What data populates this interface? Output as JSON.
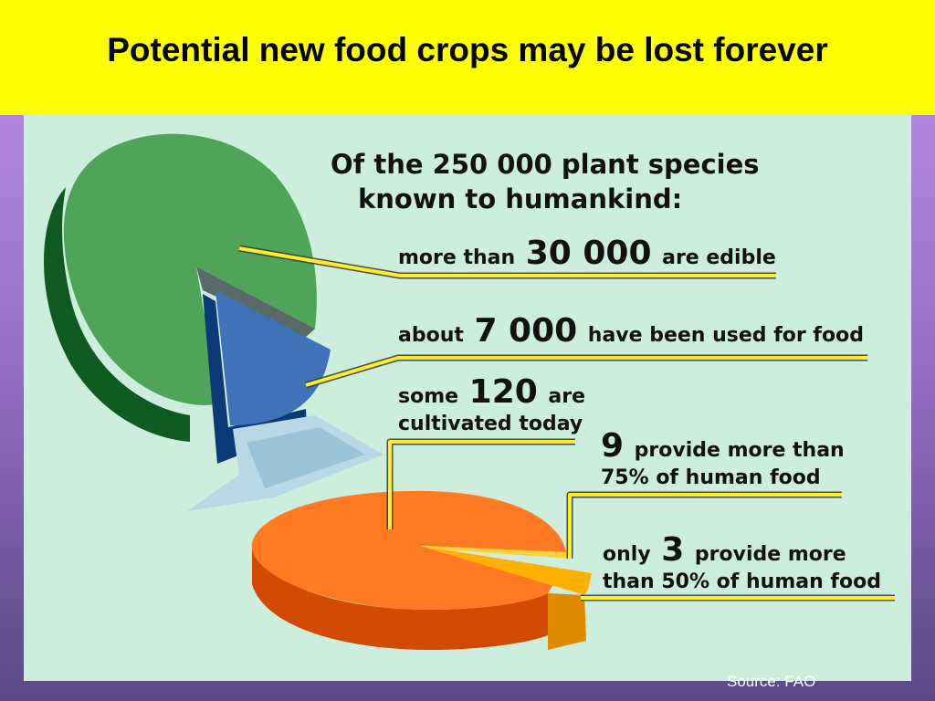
{
  "title": "Potential new food crops may be lost forever",
  "source": "Source: FAO",
  "chart_data": {
    "type": "pie",
    "heading_line1": "Of the 250 000 plant species",
    "heading_line2": "known to humankind:",
    "pies": [
      {
        "total": 250000,
        "slices": [
          {
            "label": "edible",
            "value": 30000
          },
          {
            "label": "used for food",
            "value": 7000
          }
        ]
      },
      {
        "total": 120,
        "slices": [
          {
            "label": "provide more than 75% of human food",
            "value": 9
          },
          {
            "label": "provide more than 50% of human food",
            "value": 3
          }
        ]
      }
    ],
    "labels": [
      {
        "pre": "more than",
        "num": "30 000",
        "post": "are edible"
      },
      {
        "pre": "about",
        "num": "7 000",
        "post": "have been used for food"
      },
      {
        "pre": "some",
        "num": "120",
        "post": "are",
        "line2": "cultivated today"
      },
      {
        "pre": "",
        "num": "9",
        "post": "provide more than",
        "line2": "75% of human food"
      },
      {
        "pre": "only",
        "num": "3",
        "post": "provide more",
        "line2": "than 50% of human food"
      }
    ],
    "colors": {
      "edible_pie": "#4fa45a",
      "edible_pie_side": "#0f5a22",
      "used_slice": "#3f72b8",
      "used_slice_side": "#0c3a78",
      "cultivated_pie": "#ff7a22",
      "cultivated_pie_side": "#d24a00",
      "top_slice": "#ffb000",
      "top_slice_side": "#e08a00",
      "leader": "#ffee22"
    }
  }
}
